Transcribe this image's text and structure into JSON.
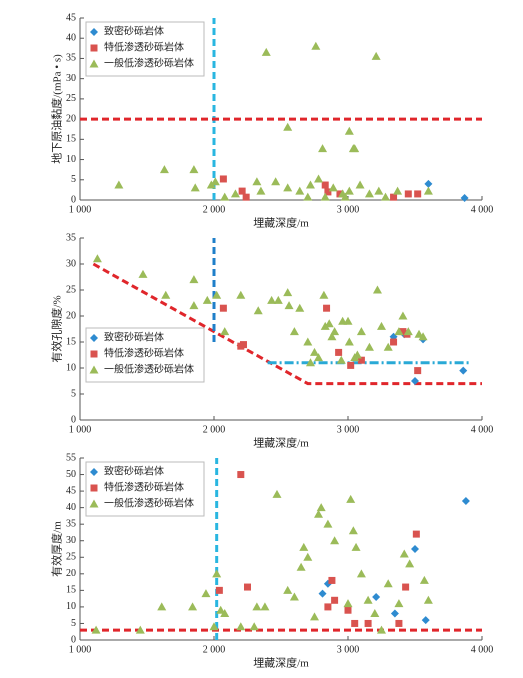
{
  "chart_data": [
    {
      "type": "scatter",
      "ylabel": "地下原油黏度/(mPa • s)",
      "xlabel": "埋藏深度/m",
      "xlim": [
        1000,
        4000
      ],
      "ylim": [
        0,
        45
      ],
      "xticks": [
        {
          "value": 1000,
          "label": "1 000"
        },
        {
          "value": 2000,
          "label": "2 000"
        },
        {
          "value": 3000,
          "label": "3 000"
        },
        {
          "value": 4000,
          "label": "4 000"
        }
      ],
      "yticks": [
        0,
        5,
        10,
        15,
        20,
        25,
        30,
        35,
        40,
        45
      ],
      "legend": "upper left",
      "series": [
        {
          "name": "致密砂砾岩体",
          "color": "#2e8bd0",
          "marker": "diamond",
          "x": [
            3600,
            3870
          ],
          "values": [
            4,
            0.5
          ]
        },
        {
          "name": "特低渗透砂砾岩体",
          "color": "#d9534f",
          "marker": "square",
          "x": [
            2070,
            2210,
            2240,
            2850,
            2830,
            2940,
            3450,
            3520,
            3340
          ],
          "values": [
            5.2,
            2.2,
            0.7,
            2,
            3.7,
            1.5,
            1.5,
            1.5,
            0.7
          ]
        },
        {
          "name": "一般低渗透砂砾岩体",
          "color": "#9bbb59",
          "marker": "triangle",
          "x": [
            1290,
            1630,
            1850,
            1860,
            1980,
            2010,
            2390,
            2760,
            3210,
            2550,
            2810,
            3010,
            3040,
            3050,
            2320,
            2460,
            2550,
            2640,
            2720,
            2780,
            2830,
            2890,
            2960,
            3010,
            3090,
            3160,
            3230,
            3280,
            3370,
            2080,
            2160,
            2700,
            2980,
            2350,
            3600
          ],
          "values": [
            3.7,
            7.5,
            7.5,
            3,
            3.7,
            4.5,
            36.5,
            38,
            35.5,
            18,
            12.7,
            17,
            12.7,
            12.7,
            4.5,
            4.5,
            3,
            2.2,
            3.7,
            5.2,
            0.7,
            3,
            1.5,
            2.2,
            3.7,
            1.5,
            2.2,
            0.7,
            2.2,
            0.7,
            1.5,
            0.7,
            0.7,
            2.2,
            2.2
          ]
        }
      ],
      "lines": [
        {
          "color": "#29b6e0",
          "dash": "dashed",
          "x": [
            2000,
            2000
          ],
          "y": [
            0,
            45
          ]
        },
        {
          "color": "#e0262b",
          "dash": "dashed",
          "x": [
            1000,
            4000
          ],
          "y": [
            20,
            20
          ]
        }
      ]
    },
    {
      "type": "scatter",
      "ylabel": "有效孔隙度/%",
      "xlabel": "埋藏深度/m",
      "xlim": [
        1000,
        4000
      ],
      "ylim": [
        0,
        35
      ],
      "xticks": [
        {
          "value": 1000,
          "label": "1 000"
        },
        {
          "value": 2000,
          "label": "2 000"
        },
        {
          "value": 3000,
          "label": "3 000"
        },
        {
          "value": 4000,
          "label": "4 000"
        }
      ],
      "yticks": [
        0,
        5,
        10,
        15,
        20,
        25,
        30,
        35
      ],
      "legend": "lower left",
      "series": [
        {
          "name": "致密砂砾岩体",
          "color": "#2e8bd0",
          "marker": "diamond",
          "x": [
            3420,
            3560,
            3500,
            3860,
            3340
          ],
          "values": [
            16.5,
            15.5,
            7.5,
            9.5,
            16
          ]
        },
        {
          "name": "特低渗透砂砾岩体",
          "color": "#d9534f",
          "marker": "square",
          "x": [
            2070,
            2220,
            2200,
            2840,
            2930,
            3020,
            3100,
            3340,
            3410,
            3520,
            3440
          ],
          "values": [
            21.5,
            14.5,
            14.2,
            21.5,
            13,
            10.5,
            11.5,
            15,
            17,
            9.5,
            16.5
          ]
        },
        {
          "name": "一般低渗透砂砾岩体",
          "color": "#9bbb59",
          "marker": "triangle",
          "x": [
            1130,
            1470,
            1640,
            1850,
            1850,
            1950,
            2020,
            2080,
            2200,
            2330,
            2430,
            2480,
            2550,
            2560,
            2640,
            2600,
            2700,
            2720,
            2780,
            2820,
            2830,
            2860,
            2880,
            2900,
            2960,
            3000,
            3010,
            3050,
            3100,
            3160,
            3220,
            3250,
            3300,
            3380,
            3410,
            3450,
            3530,
            3560,
            2750,
            2950,
            3070
          ],
          "values": [
            31,
            28,
            24,
            27,
            22,
            23,
            24,
            17,
            24,
            21,
            23,
            23,
            24.5,
            22,
            21.5,
            17,
            15,
            11,
            12,
            24,
            18,
            18.5,
            16,
            17,
            19,
            19,
            15,
            12,
            17,
            14,
            25,
            18,
            14,
            17,
            20,
            17,
            16.5,
            16,
            13,
            11.5,
            12.5
          ]
        }
      ],
      "lines": [
        {
          "color": "#e0262b",
          "dash": "dashed",
          "x": [
            1100,
            2000,
            2700,
            4000
          ],
          "y": [
            30,
            17,
            7,
            7
          ]
        },
        {
          "color": "#1f7fc9",
          "dash": "dashed",
          "x": [
            2000,
            2000
          ],
          "y": [
            15,
            35
          ]
        },
        {
          "color": "#29a9d6",
          "dash": "dashdot",
          "x": [
            2400,
            3900
          ],
          "y": [
            11,
            11
          ]
        }
      ]
    },
    {
      "type": "scatter",
      "ylabel": "有效厚度/m",
      "xlabel": "埋藏深度/m",
      "xlim": [
        1000,
        4000
      ],
      "ylim": [
        0,
        55
      ],
      "xticks": [
        {
          "value": 1000,
          "label": "1 000"
        },
        {
          "value": 2000,
          "label": "2 000"
        },
        {
          "value": 3000,
          "label": "3 000"
        },
        {
          "value": 4000,
          "label": "4 000"
        }
      ],
      "yticks": [
        0,
        5,
        10,
        15,
        20,
        25,
        30,
        35,
        40,
        45,
        50,
        55
      ],
      "legend": "upper left",
      "series": [
        {
          "name": "致密砂砾岩体",
          "color": "#2e8bd0",
          "marker": "diamond",
          "x": [
            3880,
            3500,
            3580,
            2810,
            3210,
            3350,
            2850
          ],
          "values": [
            42,
            27.5,
            6,
            14,
            13,
            8,
            17
          ]
        },
        {
          "name": "特低渗透砂砾岩体",
          "color": "#d9534f",
          "marker": "square",
          "x": [
            2200,
            2250,
            2040,
            2850,
            2900,
            3000,
            3050,
            3150,
            3380,
            3430,
            3510,
            2880
          ],
          "values": [
            50,
            16,
            15,
            10,
            12,
            9,
            5,
            5,
            5,
            16,
            32,
            18
          ]
        },
        {
          "name": "一般低渗透砂砾岩体",
          "color": "#9bbb59",
          "marker": "triangle",
          "x": [
            1120,
            1450,
            1610,
            1840,
            1940,
            2020,
            2050,
            2080,
            2320,
            2380,
            2470,
            2550,
            2600,
            2650,
            2670,
            2700,
            2780,
            2800,
            2850,
            2900,
            2750,
            3000,
            3020,
            3040,
            3060,
            3100,
            3150,
            3200,
            3250,
            3300,
            3380,
            3420,
            3460,
            3570,
            3600,
            2200,
            2000,
            2300
          ],
          "values": [
            3,
            3,
            10,
            10,
            14,
            20,
            9,
            8,
            10,
            10,
            44,
            15,
            13,
            22,
            28,
            25,
            38,
            40,
            35,
            30,
            7,
            11,
            42.5,
            33,
            28,
            20,
            12,
            8,
            3,
            17,
            11,
            26,
            23,
            18,
            12,
            4,
            4,
            4
          ]
        }
      ],
      "lines": [
        {
          "color": "#29b6e0",
          "dash": "dashed",
          "x": [
            2020,
            2020
          ],
          "y": [
            0,
            55
          ]
        },
        {
          "color": "#e0262b",
          "dash": "dashed",
          "x": [
            1000,
            4000
          ],
          "y": [
            3,
            3
          ]
        }
      ]
    }
  ]
}
